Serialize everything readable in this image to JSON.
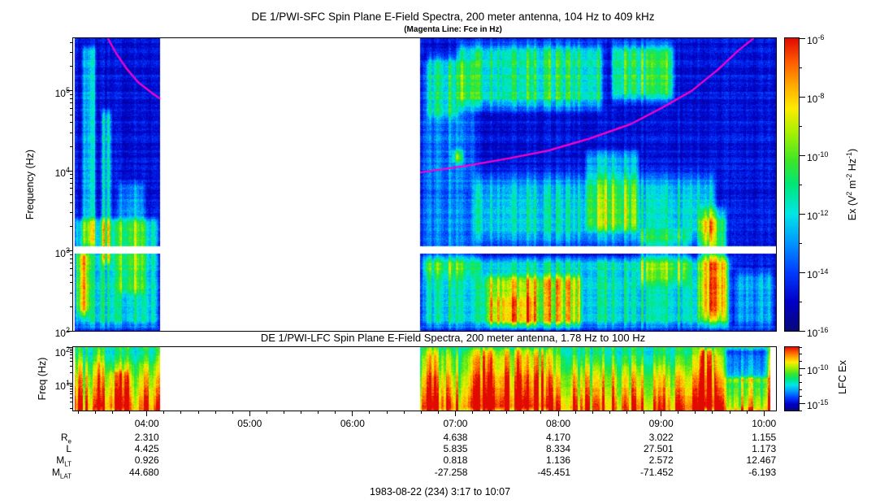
{
  "title": "DE 1/PWI-SFC  Spin Plane E-Field Spectra, 200 meter antenna, 104 Hz to 409 kHz",
  "subtitle": "(Magenta Line: Fce in Hz)",
  "lfc_title": "DE 1/PWI-LFC  Spin Plane E-Field Spectra, 200 meter antenna, 1.78 Hz to 100 Hz",
  "date_line": "1983-08-22 (234) 3:17 to 10:07",
  "chart_data": {
    "type": "heatmap",
    "description": "Two-panel frequency-time spectrogram of DE 1 Plasma Wave Instrument electric field data with rainbow intensity color scale, magenta electron cyclotron frequency (Fce) line, a data gap between about 04:08 and 06:40 UT, and spacecraft ephemeris rows beneath the time axis.",
    "time_axis": {
      "start_hour": 3.2833,
      "end_hour": 10.1167,
      "tick_hours": [
        4,
        5,
        6,
        7,
        8,
        9,
        10
      ],
      "tick_labels": [
        "04:00",
        "05:00",
        "06:00",
        "07:00",
        "08:00",
        "09:00",
        "10:00"
      ],
      "minor_tick_minutes": 10,
      "data_gap_hours": [
        4.13,
        6.66
      ]
    },
    "colormap_stops": [
      [
        0.0,
        [
          8,
          8,
          120
        ]
      ],
      [
        0.1,
        [
          0,
          0,
          200
        ]
      ],
      [
        0.2,
        [
          0,
          60,
          255
        ]
      ],
      [
        0.3,
        [
          0,
          150,
          255
        ]
      ],
      [
        0.4,
        [
          0,
          230,
          230
        ]
      ],
      [
        0.5,
        [
          0,
          230,
          120
        ]
      ],
      [
        0.58,
        [
          60,
          230,
          40
        ]
      ],
      [
        0.68,
        [
          170,
          240,
          0
        ]
      ],
      [
        0.76,
        [
          255,
          235,
          0
        ]
      ],
      [
        0.84,
        [
          255,
          170,
          0
        ]
      ],
      [
        0.92,
        [
          255,
          90,
          0
        ]
      ],
      [
        1.0,
        [
          225,
          10,
          0
        ]
      ]
    ],
    "panels": [
      {
        "id": "sfc",
        "ylabel": "Frequency (Hz)",
        "freq_log_range": [
          2,
          5.655
        ],
        "freq_tick_exponents": [
          2,
          3,
          4,
          5
        ],
        "white_band_log_hz": [
          2.96,
          3.06
        ],
        "base_level": 0.13,
        "colorbar": {
          "label_parts": [
            {
              "t": "Ex (V"
            },
            {
              "t": "2",
              "sup": true
            },
            {
              "t": " m"
            },
            {
              "t": "-2",
              "sup": true
            },
            {
              "t": " Hz"
            },
            {
              "t": "-1",
              "sup": true
            },
            {
              "t": ")"
            }
          ],
          "tick_exponents_labeled": [
            -6,
            -8,
            -10,
            -12,
            -14,
            -16
          ],
          "log_range_top_bottom": [
            -6,
            -16
          ]
        },
        "fce_line": {
          "color": "#FF00CC",
          "segments": [
            [
              [
                3.62,
                5.655
              ],
              [
                3.7,
                5.47
              ],
              [
                3.8,
                5.28
              ],
              [
                3.92,
                5.1
              ],
              [
                4.05,
                4.97
              ],
              [
                4.13,
                4.9
              ]
            ],
            [
              [
                6.66,
                3.98
              ],
              [
                7.1,
                4.06
              ],
              [
                7.5,
                4.15
              ],
              [
                7.9,
                4.25
              ],
              [
                8.3,
                4.4
              ],
              [
                8.7,
                4.58
              ],
              [
                9.0,
                4.78
              ],
              [
                9.3,
                5.0
              ],
              [
                9.55,
                5.26
              ],
              [
                9.75,
                5.5
              ],
              [
                9.9,
                5.655
              ]
            ]
          ]
        },
        "features": [
          {
            "t": [
              3.283,
              4.13
            ],
            "f": [
              2.0,
              3.45
            ],
            "a": 0.3
          },
          {
            "t": [
              3.3,
              3.46
            ],
            "f": [
              2.15,
              3.05
            ],
            "a": 0.42
          },
          {
            "t": [
              3.36,
              3.52
            ],
            "f": [
              3.0,
              5.6
            ],
            "a": 0.22,
            "st": 0.03
          },
          {
            "t": [
              3.55,
              3.67
            ],
            "f": [
              2.8,
              4.8
            ],
            "a": 0.25,
            "st": 0.03
          },
          {
            "t": [
              3.7,
              4.0
            ],
            "f": [
              2.4,
              3.9
            ],
            "a": 0.18
          },
          {
            "t": [
              6.66,
              9.7
            ],
            "f": [
              2.0,
              2.95
            ],
            "a": 0.3
          },
          {
            "t": [
              7.15,
              9.55
            ],
            "f": [
              2.95,
              4.05
            ],
            "a": 0.26,
            "sf": 0.3
          },
          {
            "t": [
              7.25,
              8.25
            ],
            "f": [
              2.0,
              2.75
            ],
            "a": 0.3
          },
          {
            "t": [
              7.3,
              7.8
            ],
            "f": [
              2.0,
              2.5
            ],
            "a": 0.12
          },
          {
            "t": [
              9.35,
              9.65
            ],
            "f": [
              2.0,
              3.6
            ],
            "a": 0.42,
            "sf": 0.25
          },
          {
            "t": [
              7.0,
              8.45
            ],
            "f": [
              4.7,
              5.655
            ],
            "a": 0.36,
            "sf": 0.2
          },
          {
            "t": [
              8.5,
              9.15
            ],
            "f": [
              4.8,
              5.655
            ],
            "a": 0.4,
            "sf": 0.2
          },
          {
            "t": [
              6.7,
              7.05
            ],
            "f": [
              4.6,
              5.5
            ],
            "a": 0.2
          },
          {
            "t": [
              6.68,
              7.2
            ],
            "f": [
              2.6,
              5.4
            ],
            "a": 0.14,
            "st": 0.02
          },
          {
            "t": [
              8.25,
              8.8
            ],
            "f": [
              3.2,
              4.3
            ],
            "a": 0.22,
            "st": 0.03
          },
          {
            "t": [
              9.7,
              10.12
            ],
            "f": [
              2.0,
              2.8
            ],
            "a": 0.18
          },
          {
            "t": [
              8.75,
              9.3
            ],
            "f": [
              2.55,
              3.3
            ],
            "a": 0.18
          },
          {
            "t": [
              6.95,
              7.1
            ],
            "f": [
              4.05,
              4.3
            ],
            "a": 0.35
          }
        ]
      },
      {
        "id": "lfc",
        "ylabel": "Freq (Hz)",
        "freq_log_range": [
          0.25,
          2
        ],
        "freq_tick_exponents": [
          1,
          2
        ],
        "base_gradient": {
          "top": 0.5,
          "bottom": 0.9
        },
        "data_end_hour": 10.06,
        "colorbar": {
          "label": "LFC Ex",
          "tick_exponents_labeled": [
            -10,
            -15
          ],
          "log_range_top_bottom": [
            -7,
            -16
          ]
        },
        "features": [
          {
            "t": [
              3.33,
              3.4
            ],
            "f": [
              0.25,
              2
            ],
            "a": 0.2
          },
          {
            "t": [
              3.48,
              3.6
            ],
            "f": [
              0.25,
              2
            ],
            "a": 0.16
          },
          {
            "t": [
              3.6,
              3.85
            ],
            "f": [
              0.25,
              1.4
            ],
            "a": 0.14
          },
          {
            "t": [
              3.283,
              4.13
            ],
            "f": [
              1.5,
              2
            ],
            "a": -0.08
          },
          {
            "t": [
              6.66,
              7.0
            ],
            "f": [
              0.25,
              2
            ],
            "a": 0.1
          },
          {
            "t": [
              7.05,
              7.95
            ],
            "f": [
              0.25,
              2
            ],
            "a": 0.18
          },
          {
            "t": [
              8.05,
              9.3
            ],
            "f": [
              1.45,
              2
            ],
            "a": -0.06
          },
          {
            "t": [
              9.35,
              9.55
            ],
            "f": [
              0.25,
              2
            ],
            "a": 0.3
          },
          {
            "t": [
              9.6,
              10.06
            ],
            "f": [
              1.1,
              2
            ],
            "a": -0.3
          },
          {
            "t": [
              9.6,
              10.06
            ],
            "f": [
              0.25,
              1.1
            ],
            "a": -0.12
          }
        ]
      }
    ],
    "ephemeris": {
      "row_labels": [
        {
          "base": "R",
          "sub": "e"
        },
        {
          "base": "L",
          "sub": ""
        },
        {
          "base": "M",
          "sub": "LT"
        },
        {
          "base": "M",
          "sub": "LAT"
        }
      ],
      "column_hours": [
        4,
        7,
        8,
        9,
        10
      ],
      "rows": [
        [
          "2.310",
          "4.638",
          "4.170",
          "3.022",
          "1.155"
        ],
        [
          "4.425",
          "5.835",
          "8.334",
          "27.501",
          "1.173"
        ],
        [
          "0.926",
          "0.818",
          "1.136",
          "2.572",
          "12.467"
        ],
        [
          "44.680",
          "-27.258",
          "-45.451",
          "-71.452",
          "-6.193"
        ]
      ]
    }
  }
}
